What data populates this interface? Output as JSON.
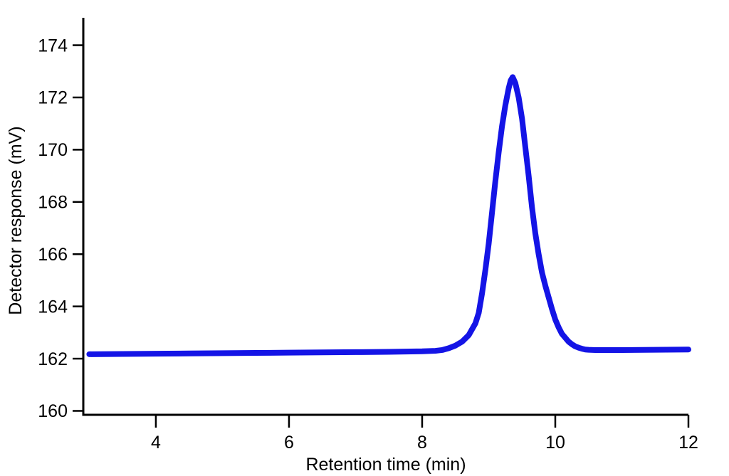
{
  "figure": {
    "xlabel": "Retention time (min)",
    "ylabel": "Detector response (mV)"
  },
  "chart_data": {
    "type": "line",
    "title": "",
    "xlabel": "Retention time (min)",
    "ylabel": "Detector response (mV)",
    "xlim": [
      2.91,
      12
    ],
    "ylim": [
      159.85,
      175.05
    ],
    "xticks": [
      4,
      6,
      8,
      10,
      12
    ],
    "yticks": [
      160,
      162,
      164,
      166,
      168,
      170,
      172,
      174
    ],
    "grid": false,
    "legend_position": "none",
    "line_color": "#1414E6",
    "line_width": 8,
    "axis_color": "#000000",
    "peak": {
      "retention_time_min": 9.35,
      "apex_mV": 172.8,
      "baseline_mV": 162.2,
      "onset_min": 8.3,
      "return_to_baseline_min": 10.6
    },
    "series": [
      {
        "name": "detector-response-trace",
        "x": [
          3.0,
          3.5,
          4.0,
          4.5,
          5.0,
          5.5,
          6.0,
          6.5,
          7.0,
          7.5,
          8.0,
          8.2,
          8.3,
          8.4,
          8.5,
          8.6,
          8.7,
          8.8,
          8.85,
          8.9,
          8.95,
          9.0,
          9.05,
          9.1,
          9.15,
          9.2,
          9.25,
          9.3,
          9.33,
          9.36,
          9.4,
          9.45,
          9.5,
          9.55,
          9.6,
          9.65,
          9.7,
          9.75,
          9.8,
          9.85,
          9.9,
          9.95,
          10.0,
          10.05,
          10.1,
          10.15,
          10.2,
          10.25,
          10.3,
          10.35,
          10.4,
          10.45,
          10.5,
          10.6,
          10.8,
          11.0,
          11.5,
          12.0
        ],
        "y": [
          162.17,
          162.18,
          162.19,
          162.2,
          162.21,
          162.22,
          162.23,
          162.24,
          162.25,
          162.26,
          162.28,
          162.3,
          162.33,
          162.4,
          162.5,
          162.65,
          162.9,
          163.35,
          163.75,
          164.5,
          165.4,
          166.4,
          167.6,
          168.8,
          169.9,
          170.9,
          171.7,
          172.35,
          172.65,
          172.78,
          172.55,
          172.0,
          171.2,
          170.1,
          169.0,
          167.8,
          166.8,
          166.0,
          165.3,
          164.8,
          164.35,
          163.9,
          163.5,
          163.2,
          162.95,
          162.8,
          162.65,
          162.55,
          162.47,
          162.42,
          162.38,
          162.35,
          162.34,
          162.33,
          162.33,
          162.33,
          162.34,
          162.35
        ]
      }
    ]
  }
}
